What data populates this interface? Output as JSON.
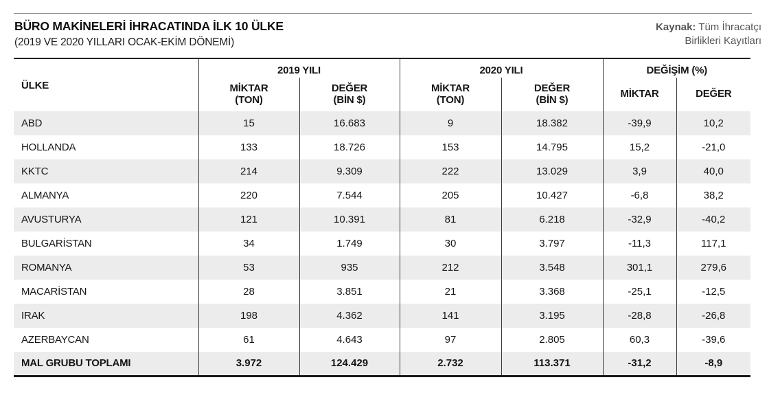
{
  "header": {
    "title": "BÜRO MAKİNELERİ İHRACATINDA İLK 10 ÜLKE",
    "subtitle": "(2019 VE 2020 YILLARI OCAK-EKİM DÖNEMİ)",
    "source_label": "Kaynak:",
    "source_line1": " Tüm İhracatçı",
    "source_line2": "Birlikleri Kayıtları"
  },
  "table": {
    "col_headers": {
      "country": "ÜLKE",
      "group_2019": "2019 YILI",
      "group_2020": "2020 YILI",
      "group_change": "DEĞİŞİM (%)",
      "qty_label": "MİKTAR",
      "qty_unit": "(TON)",
      "val_label": "DEĞER",
      "val_unit": "(BİN $)",
      "chg_qty_label": "MİKTAR",
      "chg_val_label": "DEĞER"
    },
    "column_keys": [
      "country",
      "qty-2019",
      "val-2019",
      "qty-2020",
      "val-2020",
      "chg-qty",
      "chg-val"
    ]
  },
  "chart_data": {
    "type": "table",
    "title": "BÜRO MAKİNELERİ İHRACATINDA İLK 10 ÜLKE",
    "subtitle": "(2019 VE 2020 YILLARI OCAK-EKİM DÖNEMİ)",
    "source": "Kaynak: Tüm İhracatçı Birlikleri Kayıtları",
    "column_groups": [
      "2019 YILI",
      "2020 YILI",
      "DEĞİŞİM (%)"
    ],
    "columns": [
      "ÜLKE",
      "2019 MİKTAR (TON)",
      "2019 DEĞER (BİN $)",
      "2020 MİKTAR (TON)",
      "2020 DEĞER (BİN $)",
      "DEĞİŞİM MİKTAR (%)",
      "DEĞİŞİM DEĞER (%)"
    ],
    "rows": [
      [
        "ABD",
        "15",
        "16.683",
        "9",
        "18.382",
        "-39,9",
        "10,2"
      ],
      [
        "HOLLANDA",
        "133",
        "18.726",
        "153",
        "14.795",
        "15,2",
        "-21,0"
      ],
      [
        "KKTC",
        "214",
        "9.309",
        "222",
        "13.029",
        "3,9",
        "40,0"
      ],
      [
        "ALMANYA",
        "220",
        "7.544",
        "205",
        "10.427",
        "-6,8",
        "38,2"
      ],
      [
        "AVUSTURYA",
        "121",
        "10.391",
        "81",
        "6.218",
        "-32,9",
        "-40,2"
      ],
      [
        "BULGARİSTAN",
        "34",
        "1.749",
        "30",
        "3.797",
        "-11,3",
        "117,1"
      ],
      [
        "ROMANYA",
        "53",
        "935",
        "212",
        "3.548",
        "301,1",
        "279,6"
      ],
      [
        "MACARİSTAN",
        "28",
        "3.851",
        "21",
        "3.368",
        "-25,1",
        "-12,5"
      ],
      [
        "IRAK",
        "198",
        "4.362",
        "141",
        "3.195",
        "-28,8",
        "-26,8"
      ],
      [
        "AZERBAYCAN",
        "61",
        "4.643",
        "97",
        "2.805",
        "60,3",
        "-39,6"
      ]
    ],
    "total_row": [
      "MAL GRUBU TOPLAMI",
      "3.972",
      "124.429",
      "2.732",
      "113.371",
      "-31,2",
      "-8,9"
    ]
  }
}
